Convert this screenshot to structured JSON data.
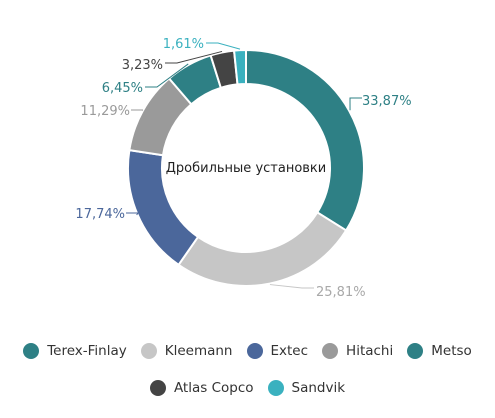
{
  "chart_data": {
    "type": "donut",
    "title": "Дробильные установки",
    "slices": [
      {
        "name": "Terex-Finlay",
        "value": 33.87,
        "label": "33,87%",
        "color": "#2e8085"
      },
      {
        "name": "Kleemann",
        "value": 25.81,
        "label": "25,81%",
        "color": "#c6c6c6"
      },
      {
        "name": "Extec",
        "value": 17.74,
        "label": "17,74%",
        "color": "#4b679b"
      },
      {
        "name": "Hitachi",
        "value": 11.29,
        "label": "11,29%",
        "color": "#9a9a9a"
      },
      {
        "name": "Metso",
        "value": 6.45,
        "label": "6,45%",
        "color": "#2e8085"
      },
      {
        "name": "Atlas Copco",
        "value": 3.23,
        "label": "3,23%",
        "color": "#444444"
      },
      {
        "name": "Sandvik",
        "value": 1.61,
        "label": "1,61%",
        "color": "#3ab1bf"
      }
    ],
    "legend_position": "bottom"
  }
}
